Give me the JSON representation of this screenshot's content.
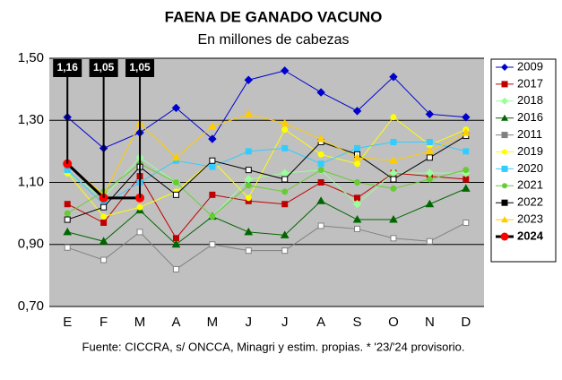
{
  "chart_data": {
    "type": "line",
    "title": "FAENA DE GANADO VACUNO",
    "subtitle": "En millones de cabezas",
    "note": "Fuente: CICCRA, s/ ONCCA, Minagri y estim. propias. * '23/'24 provisorio.",
    "categories": [
      "E",
      "F",
      "M",
      "A",
      "M",
      "J",
      "J",
      "A",
      "S",
      "O",
      "N",
      "D"
    ],
    "ylim": [
      0.7,
      1.5
    ],
    "yticks": [
      {
        "value": 0.7,
        "label": "0,70"
      },
      {
        "value": 0.9,
        "label": "0,90"
      },
      {
        "value": 1.1,
        "label": "1,10"
      },
      {
        "value": 1.3,
        "label": "1,30"
      },
      {
        "value": 1.5,
        "label": "1,50"
      }
    ],
    "grid": true,
    "legend": "right",
    "series": [
      {
        "name": "2009",
        "color": "#0000cc",
        "marker": "diamond",
        "values": [
          1.31,
          1.21,
          1.26,
          1.34,
          1.24,
          1.43,
          1.46,
          1.39,
          1.33,
          1.44,
          1.32,
          1.31
        ]
      },
      {
        "name": "2017",
        "color": "#c00000",
        "marker": "square",
        "values": [
          1.03,
          0.97,
          1.12,
          0.92,
          1.06,
          1.04,
          1.03,
          1.1,
          1.05,
          1.13,
          1.12,
          1.11
        ]
      },
      {
        "name": "2018",
        "color": "#99ff99",
        "marker": "diamond",
        "values": [
          1.13,
          1.05,
          1.18,
          1.1,
          0.99,
          1.11,
          1.13,
          1.14,
          1.03,
          1.13,
          1.13,
          1.13
        ]
      },
      {
        "name": "2016",
        "color": "#006600",
        "marker": "triangle",
        "values": [
          0.94,
          0.91,
          1.01,
          0.9,
          0.99,
          0.94,
          0.93,
          1.04,
          0.98,
          0.98,
          1.03,
          1.08
        ]
      },
      {
        "name": "2011",
        "color": "#808080",
        "marker": "square",
        "values": [
          0.89,
          0.85,
          0.94,
          0.82,
          0.9,
          0.88,
          0.88,
          0.96,
          0.95,
          0.92,
          0.91,
          0.97
        ]
      },
      {
        "name": "2019",
        "color": "#ffff00",
        "marker": "circle",
        "values": [
          1.13,
          0.99,
          1.02,
          1.07,
          1.17,
          1.05,
          1.27,
          1.19,
          1.16,
          1.31,
          1.22,
          1.27
        ]
      },
      {
        "name": "2020",
        "color": "#33ccff",
        "marker": "square",
        "values": [
          1.14,
          1.03,
          1.1,
          1.17,
          1.15,
          1.2,
          1.21,
          1.16,
          1.21,
          1.23,
          1.23,
          1.2
        ]
      },
      {
        "name": "2021",
        "color": "#66cc33",
        "marker": "circle",
        "values": [
          1.0,
          1.07,
          1.16,
          1.1,
          0.99,
          1.09,
          1.07,
          1.14,
          1.1,
          1.08,
          1.11,
          1.14
        ]
      },
      {
        "name": "2022",
        "color": "#000000",
        "marker": "square",
        "values": [
          0.98,
          1.02,
          1.15,
          1.06,
          1.17,
          1.14,
          1.11,
          1.23,
          1.19,
          1.11,
          1.18,
          1.25
        ]
      },
      {
        "name": "2023",
        "color": "#ffcc00",
        "marker": "triangle",
        "values": [
          1.16,
          1.06,
          1.29,
          1.18,
          1.28,
          1.32,
          1.29,
          1.24,
          1.18,
          1.17,
          1.2,
          1.26
        ]
      },
      {
        "name": "2024",
        "color": "#000000",
        "marker": "circle",
        "marker_color": "#ff0000",
        "line_width": 3,
        "values": [
          1.16,
          1.05,
          1.05,
          null,
          null,
          null,
          null,
          null,
          null,
          null,
          null,
          null
        ],
        "value_labels": [
          "1,16",
          "1,05",
          "1,05",
          null,
          null,
          null,
          null,
          null,
          null,
          null,
          null,
          null
        ]
      }
    ]
  }
}
